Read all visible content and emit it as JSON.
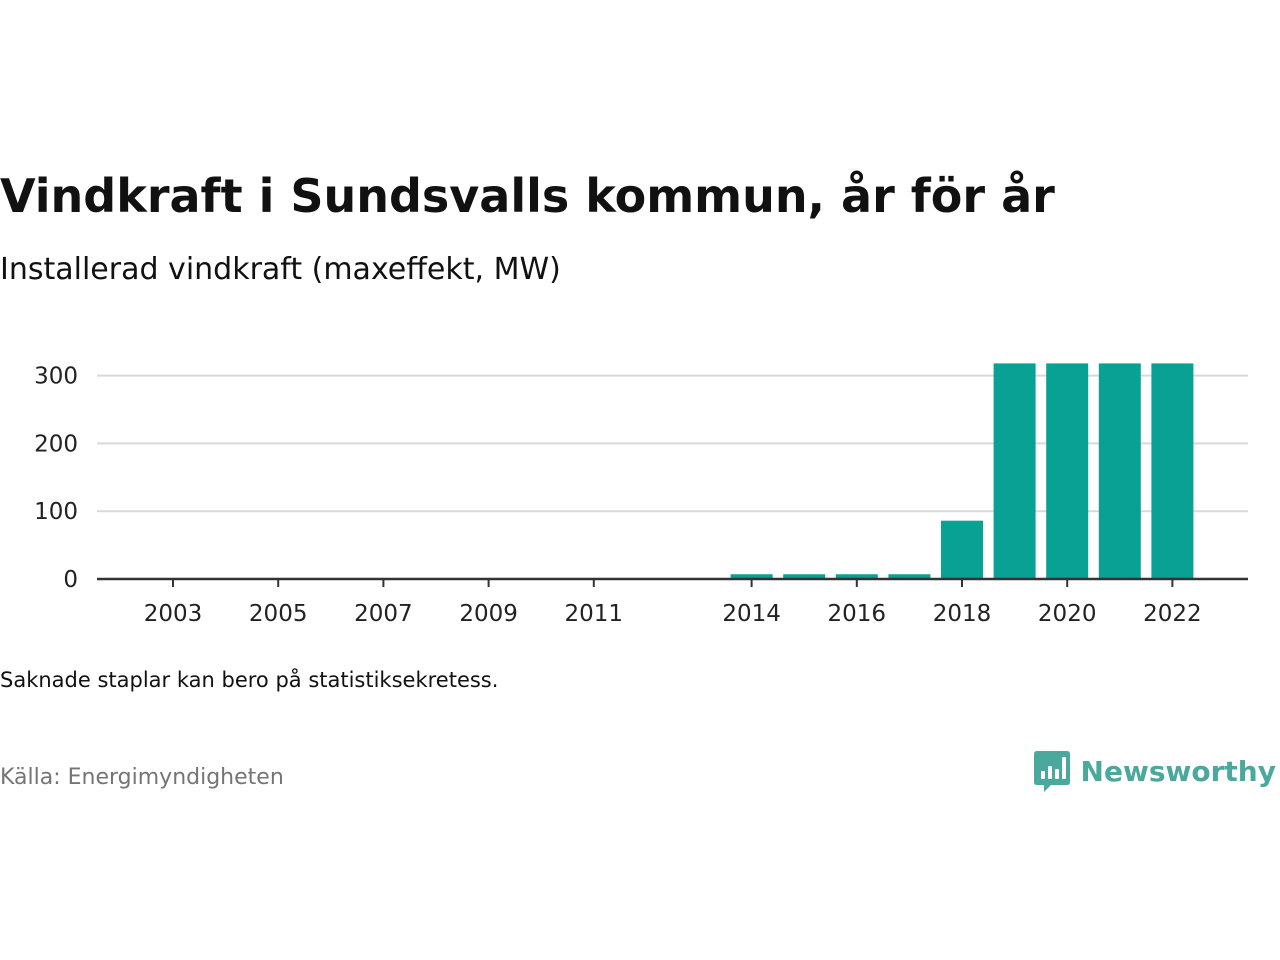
{
  "header": {
    "title": "Vindkraft i Sundsvalls kommun, år för år",
    "subtitle": "Installerad vindkraft (maxeffekt, MW)"
  },
  "footer": {
    "note": "Saknade staplar kan bero på statistiksekretess.",
    "source": "Källa: Energimyndigheten",
    "brand": "Newsworthy",
    "brand_icon": "newsworthy-chart-bubble-icon"
  },
  "colors": {
    "bar": "#08a193",
    "brand": "#4aa89c",
    "grid": "#d9d9d9",
    "axis": "#333333"
  },
  "chart_data": {
    "type": "bar",
    "title": "Vindkraft i Sundsvalls kommun, år för år",
    "subtitle": "Installerad vindkraft (maxeffekt, MW)",
    "xlabel": "",
    "ylabel": "",
    "categories": [
      "2003",
      "2004",
      "2005",
      "2006",
      "2007",
      "2008",
      "2009",
      "2010",
      "2011",
      "2012",
      "2013",
      "2014",
      "2015",
      "2016",
      "2017",
      "2018",
      "2019",
      "2020",
      "2021",
      "2022"
    ],
    "values": [
      0,
      0,
      0,
      0,
      0,
      0,
      0,
      0,
      0,
      null,
      null,
      7,
      7,
      7,
      7,
      86,
      318,
      318,
      318,
      318
    ],
    "x_tick_labels": [
      "2003",
      "2005",
      "2007",
      "2009",
      "2011",
      "2014",
      "2016",
      "2018",
      "2020",
      "2022"
    ],
    "y_ticks": [
      0,
      100,
      200,
      300
    ],
    "ylim": [
      0,
      330
    ],
    "grid": true,
    "legend": "none"
  }
}
